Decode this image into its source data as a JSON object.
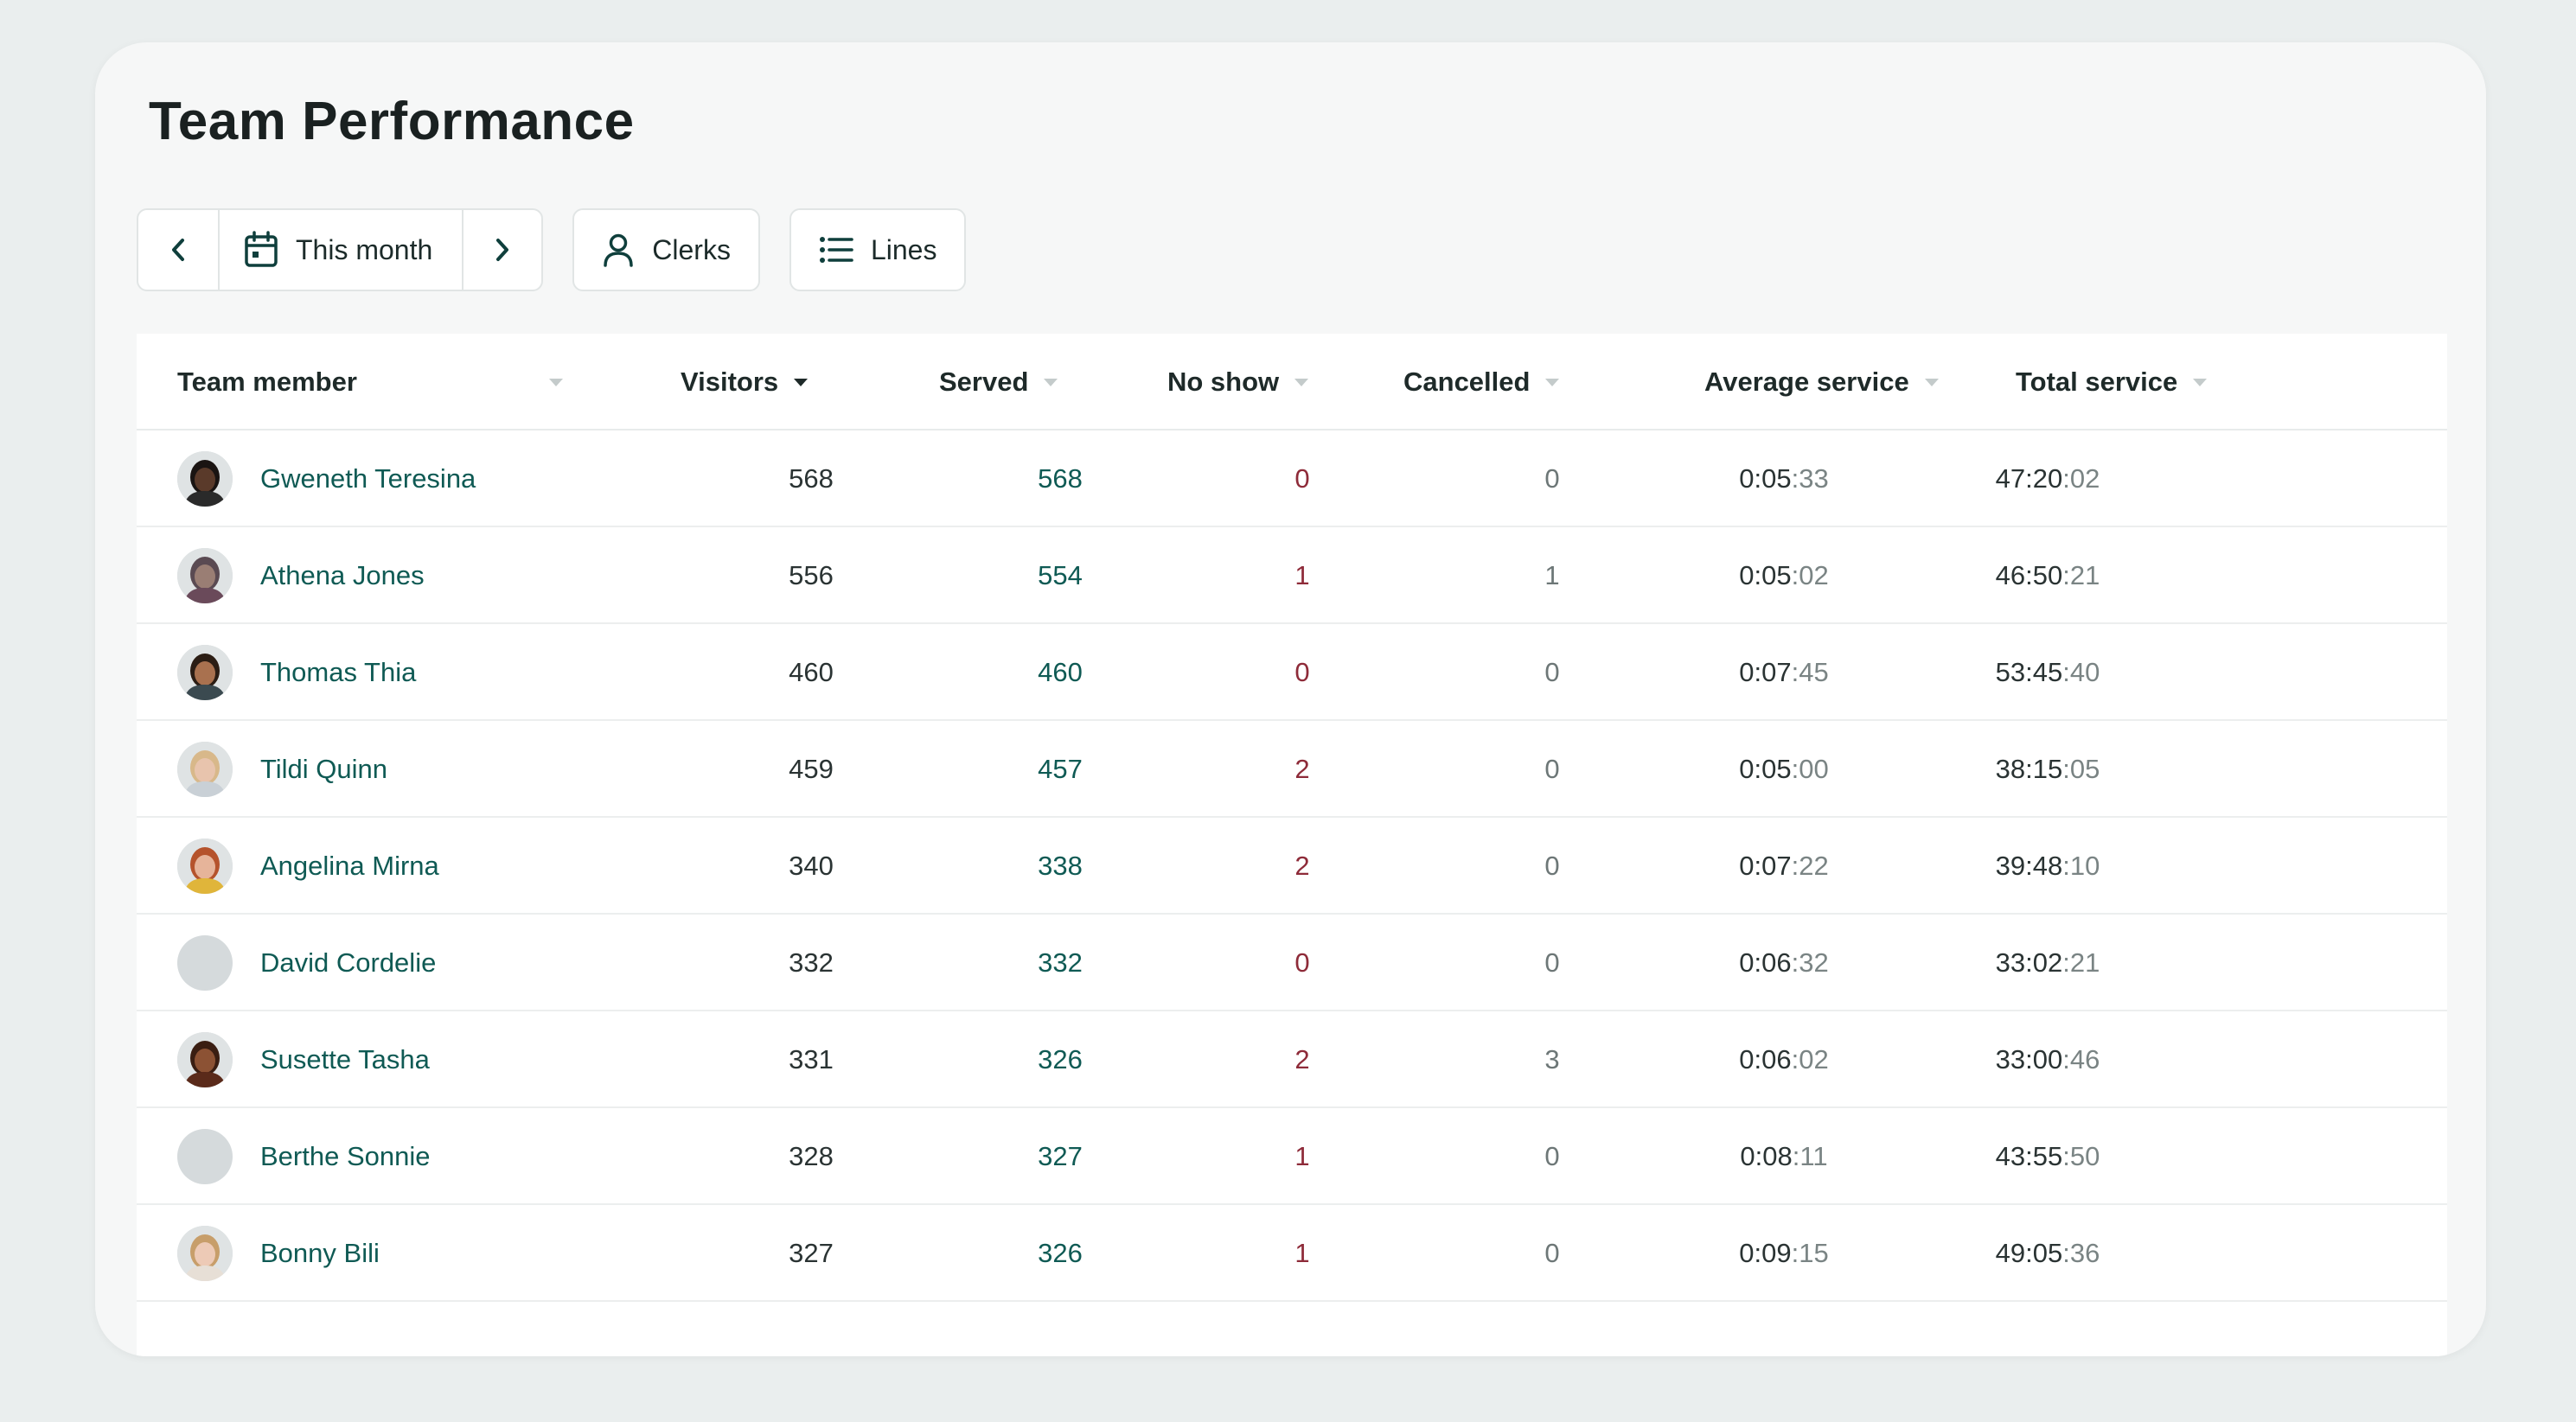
{
  "page": {
    "title": "Team Performance"
  },
  "toolbar": {
    "range_label": "This month",
    "clerks_label": "Clerks",
    "lines_label": "Lines"
  },
  "table": {
    "columns": [
      "Team member",
      "Visitors",
      "Served",
      "No show",
      "Cancelled",
      "Average service",
      "Total service"
    ],
    "sorted_column": "Visitors",
    "rows": [
      {
        "name": "Gweneth Teresina",
        "avatar": "photo",
        "skin": "#5a3a2a",
        "hair": "#1a1412",
        "shirt": "#2a2a2a",
        "visitors": "568",
        "served": "568",
        "no_show": "0",
        "cancelled": "0",
        "avg_main": "0:05",
        "avg_sec": ":33",
        "total_main": "47:20",
        "total_sec": ":02"
      },
      {
        "name": "Athena Jones",
        "avatar": "photo",
        "skin": "#9a7e74",
        "hair": "#5a4a52",
        "shirt": "#6a4a5a",
        "visitors": "556",
        "served": "554",
        "no_show": "1",
        "cancelled": "1",
        "avg_main": "0:05",
        "avg_sec": ":02",
        "total_main": "46:50",
        "total_sec": ":21"
      },
      {
        "name": "Thomas Thia",
        "avatar": "photo",
        "skin": "#a9714f",
        "hair": "#2b1d14",
        "shirt": "#3b4a50",
        "visitors": "460",
        "served": "460",
        "no_show": "0",
        "cancelled": "0",
        "avg_main": "0:07",
        "avg_sec": ":45",
        "total_main": "53:45",
        "total_sec": ":40"
      },
      {
        "name": "Tildi Quinn",
        "avatar": "photo",
        "skin": "#e8c4ad",
        "hair": "#d8b88a",
        "shirt": "#c9d0d6",
        "visitors": "459",
        "served": "457",
        "no_show": "2",
        "cancelled": "0",
        "avg_main": "0:05",
        "avg_sec": ":00",
        "total_main": "38:15",
        "total_sec": ":05"
      },
      {
        "name": "Angelina Mirna",
        "avatar": "photo",
        "skin": "#e6b49a",
        "hair": "#b5532c",
        "shirt": "#e0b53a",
        "visitors": "340",
        "served": "338",
        "no_show": "2",
        "cancelled": "0",
        "avg_main": "0:07",
        "avg_sec": ":22",
        "total_main": "39:48",
        "total_sec": ":10"
      },
      {
        "name": "David Cordelie",
        "avatar": "placeholder",
        "visitors": "332",
        "served": "332",
        "no_show": "0",
        "cancelled": "0",
        "avg_main": "0:06",
        "avg_sec": ":32",
        "total_main": "33:02",
        "total_sec": ":21"
      },
      {
        "name": "Susette Tasha",
        "avatar": "photo",
        "skin": "#8c5234",
        "hair": "#3a1e12",
        "shirt": "#5a2a1a",
        "visitors": "331",
        "served": "326",
        "no_show": "2",
        "cancelled": "3",
        "avg_main": "0:06",
        "avg_sec": ":02",
        "total_main": "33:00",
        "total_sec": ":46"
      },
      {
        "name": "Berthe Sonnie",
        "avatar": "placeholder",
        "visitors": "328",
        "served": "327",
        "no_show": "1",
        "cancelled": "0",
        "avg_main": "0:08",
        "avg_sec": ":11",
        "total_main": "43:55",
        "total_sec": ":50"
      },
      {
        "name": "Bonny Bili",
        "avatar": "photo",
        "skin": "#edcab6",
        "hair": "#c79e6a",
        "shirt": "#e7dfd6",
        "visitors": "327",
        "served": "326",
        "no_show": "1",
        "cancelled": "0",
        "avg_main": "0:09",
        "avg_sec": ":15",
        "total_main": "49:05",
        "total_sec": ":36"
      }
    ]
  },
  "colors": {
    "accent": "#0f5a54",
    "no_show": "#8e2b39",
    "background": "#eaeeee",
    "card": "#f6f7f7"
  },
  "icons": {
    "prev": "chevron-left-icon",
    "calendar": "calendar-icon",
    "next": "chevron-right-icon",
    "clerks": "person-icon",
    "lines": "list-icon"
  }
}
